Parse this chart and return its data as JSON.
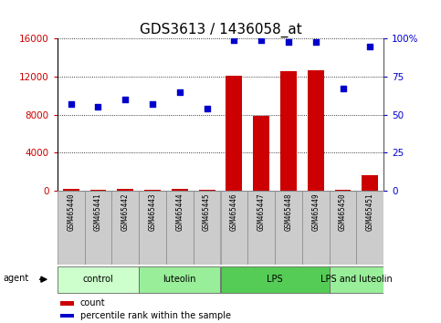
{
  "title": "GDS3613 / 1436058_at",
  "samples": [
    "GSM465440",
    "GSM465441",
    "GSM465442",
    "GSM465443",
    "GSM465444",
    "GSM465445",
    "GSM465446",
    "GSM465447",
    "GSM465448",
    "GSM465449",
    "GSM465450",
    "GSM465451"
  ],
  "counts": [
    150,
    80,
    200,
    120,
    180,
    80,
    12100,
    7850,
    12600,
    12700,
    130,
    1600
  ],
  "percentile_ranks": [
    57,
    55,
    60,
    57,
    65,
    54,
    99,
    99,
    98,
    98,
    67,
    95
  ],
  "bar_color": "#cc0000",
  "dot_color": "#0000cc",
  "ylim_left": [
    0,
    16000
  ],
  "ylim_right": [
    0,
    100
  ],
  "yticks_left": [
    0,
    4000,
    8000,
    12000,
    16000
  ],
  "yticks_right": [
    0,
    25,
    50,
    75,
    100
  ],
  "ytick_labels_left": [
    "0",
    "4000",
    "8000",
    "12000",
    "16000"
  ],
  "ytick_labels_right": [
    "0",
    "25",
    "50",
    "75",
    "100%"
  ],
  "groups": [
    {
      "label": "control",
      "start": 0,
      "end": 2,
      "color": "#ccffcc"
    },
    {
      "label": "luteolin",
      "start": 3,
      "end": 5,
      "color": "#99ee99"
    },
    {
      "label": "LPS",
      "start": 6,
      "end": 9,
      "color": "#55cc55"
    },
    {
      "label": "LPS and luteolin",
      "start": 10,
      "end": 11,
      "color": "#99ee99"
    }
  ],
  "agent_label": "agent",
  "legend_count_label": "count",
  "legend_pct_label": "percentile rank within the sample",
  "title_fontsize": 11,
  "axis_label_color_left": "#cc0000",
  "axis_label_color_right": "#0000cc",
  "grid_color": "#000000",
  "bar_width": 0.6,
  "sample_box_color": "#cccccc",
  "sample_box_edge": "#888888"
}
